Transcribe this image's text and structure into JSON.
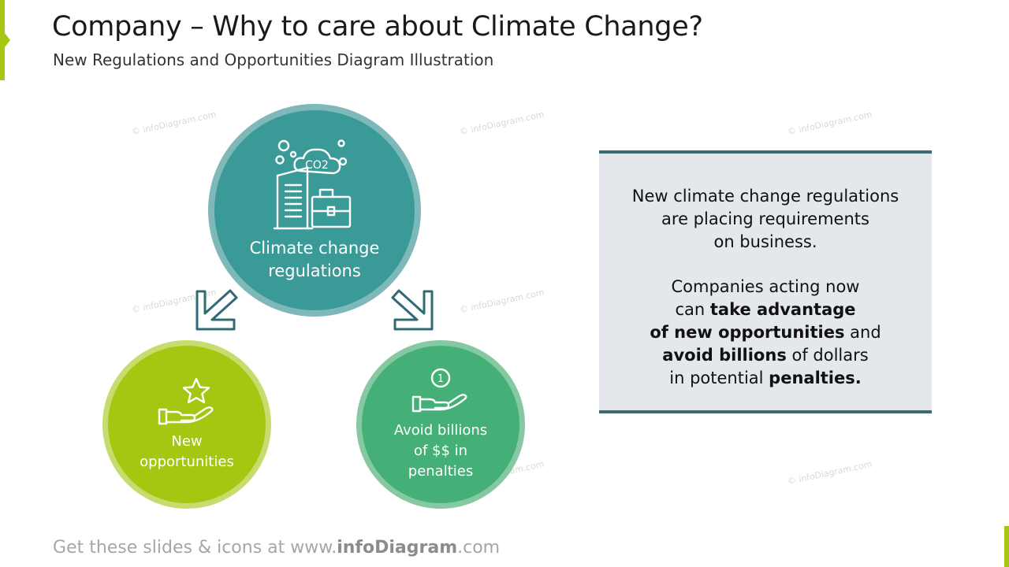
{
  "header": {
    "title": "Company – Why to care about Climate Change?",
    "subtitle": "New Regulations and Opportunities Diagram Illustration"
  },
  "diagram": {
    "main": {
      "label_line1": "Climate change",
      "label_line2": "regulations",
      "icon": "co2-building-icon"
    },
    "left": {
      "label_line1": "New",
      "label_line2": "opportunities",
      "icon": "star-hand-icon"
    },
    "right": {
      "label_line1": "Avoid billions",
      "label_line2": "of $$ in",
      "label_line3": "penalties",
      "icon": "coin-hand-icon"
    },
    "co2_text": "CO2",
    "coin_text": "1"
  },
  "info": {
    "p1_line1": "New climate change regulations",
    "p1_line2": "are placing requirements",
    "p1_line3": "on business.",
    "p2_line1": "Companies acting now",
    "p2_l2_a": "can ",
    "p2_l2_b": "take advantage",
    "p2_l3_a": "of new opportunities",
    "p2_l3_b": " and",
    "p2_l4_a": "avoid billions",
    "p2_l4_b": " of dollars",
    "p2_l5_a": "in potential ",
    "p2_l5_b": "penalties."
  },
  "watermark_text": "© infoDiagram.com",
  "footer": {
    "prefix": "Get these slides & icons at www.",
    "brand": "infoDiagram",
    "suffix": ".com"
  },
  "colors": {
    "accent_green": "#a5c712",
    "teal": "#3a9a98",
    "green": "#44b077",
    "box_border": "#3a6b73",
    "box_bg": "#e4e7ec"
  }
}
